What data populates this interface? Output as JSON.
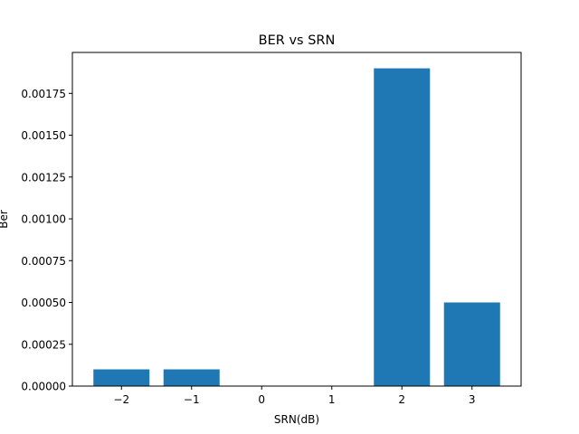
{
  "chart_data": {
    "type": "bar",
    "title": "BER vs SRN",
    "xlabel": "SRN(dB)",
    "ylabel": "Ber",
    "x": [
      -2,
      -1,
      0,
      1,
      2,
      3
    ],
    "x_tick_labels": [
      "−2",
      "−1",
      "0",
      "1",
      "2",
      "3"
    ],
    "values": [
      0.0001,
      0.0001,
      0.0,
      0.0,
      0.0019,
      0.0005
    ],
    "xlim": [
      -2.7,
      3.7
    ],
    "ylim": [
      0,
      0.001995
    ],
    "y_ticks": [
      0.0,
      0.00025,
      0.0005,
      0.00075,
      0.001,
      0.00125,
      0.0015,
      0.00175
    ],
    "y_tick_labels": [
      "0.00000",
      "0.00025",
      "0.00050",
      "0.00075",
      "0.00100",
      "0.00125",
      "0.00150",
      "0.00175"
    ],
    "bar_color": "#1f77b4",
    "grid": false,
    "legend": "none"
  }
}
